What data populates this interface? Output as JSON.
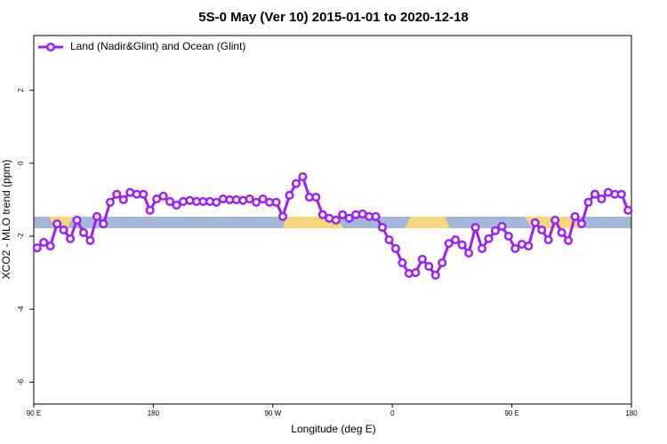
{
  "chart_data": {
    "type": "line",
    "title": "5S-0 May (Ver 10)   2015-01-01 to 2020-12-18",
    "x_label": "Longitude (deg E)",
    "y_label": "XCO2 - MLO trend (ppm)",
    "x": [
      92.5,
      97.5,
      102.5,
      107.5,
      112.5,
      117.5,
      122.5,
      127.5,
      132.5,
      137.5,
      142.5,
      147.5,
      152.5,
      157.5,
      162.5,
      167.5,
      172.5,
      177.5,
      182.5,
      187.5,
      192.5,
      197.5,
      202.5,
      207.5,
      212.5,
      217.5,
      222.5,
      227.5,
      232.5,
      237.5,
      242.5,
      247.5,
      252.5,
      257.5,
      262.5,
      267.5,
      272.5,
      277.5,
      282.5,
      287.5,
      292.5,
      297.5,
      302.5,
      307.5,
      312.5,
      317.5,
      322.5,
      327.5,
      332.5,
      337.5,
      342.5,
      347.5,
      352.5,
      357.5,
      362.5,
      367.5,
      372.5,
      377.5,
      382.5,
      387.5,
      392.5,
      397.5,
      402.5,
      407.5,
      412.5,
      417.5,
      422.5,
      427.5,
      432.5,
      437.5,
      442.5,
      447.5,
      452.5,
      457.5,
      462.5,
      467.5,
      472.5,
      477.5,
      482.5,
      487.5,
      492.5,
      497.5,
      502.5,
      507.5,
      512.5,
      517.5,
      522.5,
      527.5,
      532.5,
      537.5
    ],
    "series": [
      {
        "name": "Land (Nadir&Glint) and Ocean (Glint)",
        "color": "#a020f0",
        "values": [
          -2.32,
          -2.17,
          -2.27,
          -1.66,
          -1.83,
          -2.07,
          -1.56,
          -1.9,
          -2.12,
          -1.46,
          -1.66,
          -1.07,
          -0.85,
          -1.0,
          -0.8,
          -0.85,
          -0.85,
          -1.29,
          -0.98,
          -0.9,
          -1.05,
          -1.15,
          -1.05,
          -1.02,
          -1.05,
          -1.05,
          -1.05,
          -1.07,
          -0.98,
          -1.0,
          -1.0,
          -1.02,
          -0.98,
          -1.07,
          -0.98,
          -1.07,
          -1.07,
          -1.46,
          -0.88,
          -0.56,
          -0.37,
          -0.93,
          -0.93,
          -1.41,
          -1.51,
          -1.56,
          -1.41,
          -1.51,
          -1.41,
          -1.39,
          -1.46,
          -1.46,
          -1.76,
          -2.1,
          -2.34,
          -2.73,
          -3.02,
          -3.0,
          -2.63,
          -2.83,
          -3.07,
          -2.73,
          -2.2,
          -2.1,
          -2.24,
          -2.46,
          -1.76,
          -2.34,
          -2.07,
          -1.85,
          -1.73,
          -2.0,
          -2.34,
          -2.22,
          -2.27,
          -1.63,
          -1.83,
          -2.1,
          -1.56,
          -1.9,
          -2.12,
          -1.46,
          -1.66,
          -1.07,
          -0.85,
          -0.98,
          -0.8,
          -0.85,
          -0.85,
          -1.29
        ]
      }
    ],
    "xlim": [
      90,
      540
    ],
    "xticks": [
      {
        "value": 90,
        "label": "90 E"
      },
      {
        "value": 180,
        "label": "180"
      },
      {
        "value": 270,
        "label": "90 W"
      },
      {
        "value": 360,
        "label": "0"
      },
      {
        "value": 450,
        "label": "90 E"
      },
      {
        "value": 540,
        "label": "180"
      }
    ],
    "ylim": [
      -6.6,
      3.5
    ],
    "yticks": [
      -6,
      -4,
      -2,
      0,
      2
    ],
    "legend": "top-left"
  }
}
